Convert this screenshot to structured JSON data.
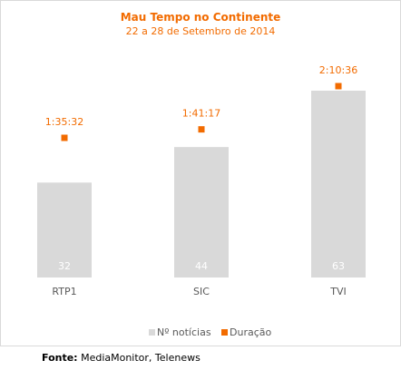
{
  "chart_data": {
    "type": "bar",
    "title": "Mau Tempo no Continente",
    "subtitle": "22 a 28 de Setembro de 2014",
    "categories": [
      "RTP1",
      "SIC",
      "TVI"
    ],
    "series": [
      {
        "name": "Nº notícias",
        "kind": "bar",
        "values": [
          32,
          44,
          63
        ]
      },
      {
        "name": "Duração",
        "kind": "marker",
        "values": [
          5732,
          6077,
          7836
        ],
        "labels": [
          "1:35:32",
          "1:41:17",
          "2:10:36"
        ]
      }
    ],
    "ylim": [
      0,
      70
    ],
    "legend_position": "bottom",
    "grid": false,
    "colors": {
      "bar": "#d9d9d9",
      "marker": "#f26b00",
      "title": "#f26b00",
      "bar_label": "#ffffff",
      "text": "#595959"
    }
  },
  "source": {
    "label": "Fonte:",
    "text": " MediaMonitor, Telenews"
  }
}
